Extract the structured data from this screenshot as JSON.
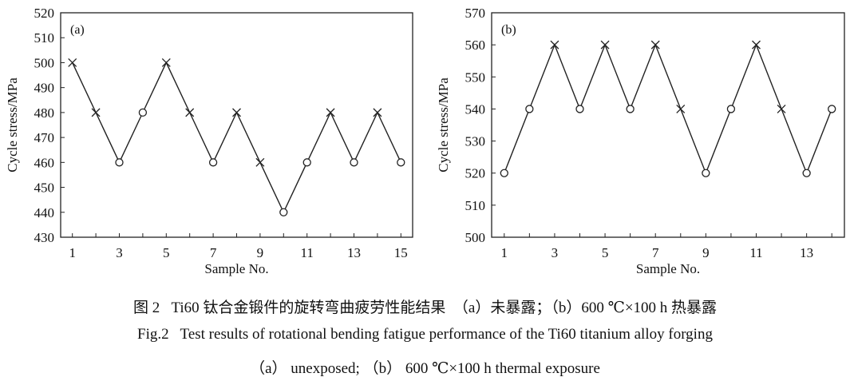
{
  "chart_data": [
    {
      "type": "line",
      "panel_label": "(a)",
      "xlabel": "Sample No.",
      "ylabel": "Cycle stress/MPa",
      "xlim": [
        0.5,
        15.5
      ],
      "ylim": [
        430,
        520
      ],
      "xticks": [
        1,
        3,
        5,
        7,
        9,
        11,
        13,
        15
      ],
      "yticks": [
        430,
        440,
        450,
        460,
        470,
        480,
        490,
        500,
        510,
        520
      ],
      "grid": false,
      "marker_legend": {
        "x": "cross marker",
        "o": "circle marker"
      },
      "x": [
        1,
        2,
        3,
        4,
        5,
        6,
        7,
        8,
        9,
        10,
        11,
        12,
        13,
        14,
        15
      ],
      "y": [
        500,
        480,
        460,
        480,
        500,
        480,
        460,
        480,
        460,
        440,
        460,
        480,
        460,
        480,
        460
      ],
      "markers": [
        "x",
        "x",
        "o",
        "o",
        "x",
        "x",
        "o",
        "x",
        "x",
        "o",
        "o",
        "x",
        "o",
        "x",
        "o"
      ]
    },
    {
      "type": "line",
      "panel_label": "(b)",
      "xlabel": "Sample No.",
      "ylabel": "Cycle stress/MPa",
      "xlim": [
        0.5,
        14.5
      ],
      "ylim": [
        500,
        570
      ],
      "xticks": [
        1,
        3,
        5,
        7,
        9,
        11,
        13
      ],
      "yticks": [
        500,
        510,
        520,
        530,
        540,
        550,
        560,
        570
      ],
      "grid": false,
      "x": [
        1,
        2,
        3,
        4,
        5,
        6,
        7,
        8,
        9,
        10,
        11,
        12,
        13,
        14
      ],
      "y": [
        520,
        540,
        560,
        540,
        560,
        540,
        560,
        540,
        520,
        540,
        560,
        540,
        520,
        540
      ],
      "markers": [
        "o",
        "o",
        "x",
        "o",
        "x",
        "o",
        "x",
        "x",
        "o",
        "o",
        "x",
        "x",
        "o",
        "o"
      ]
    }
  ],
  "caption": {
    "line1": "图 2   Ti60 钛合金锻件的旋转弯曲疲劳性能结果  （a）未暴露；（b）600 ℃×100 h 热暴露",
    "line2": "Fig.2   Test results of rotational bending fatigue performance of the Ti60 titanium alloy forging",
    "line3": "（a） unexposed; （b） 600 ℃×100 h thermal exposure"
  }
}
